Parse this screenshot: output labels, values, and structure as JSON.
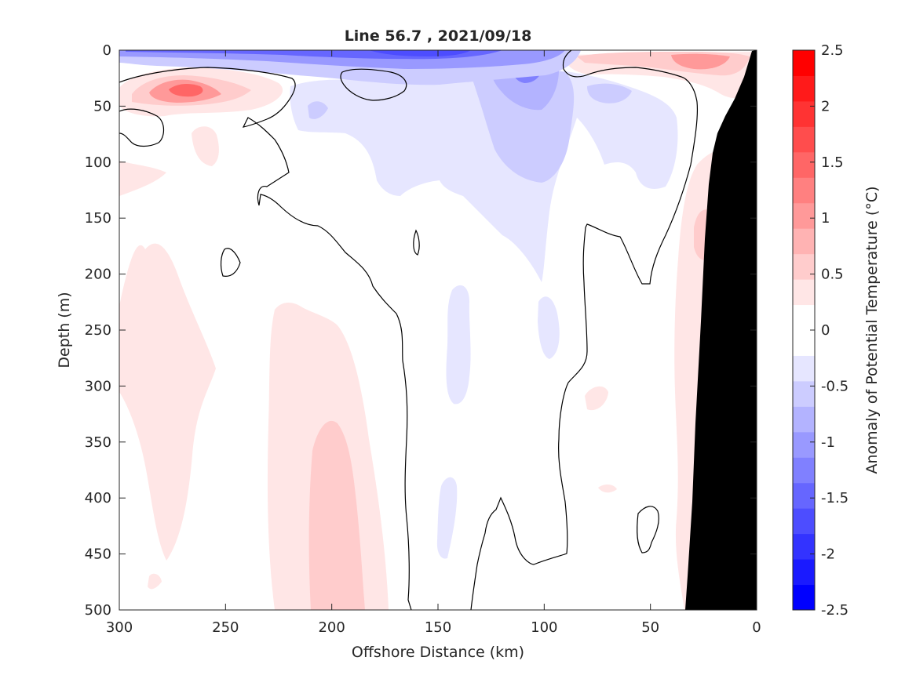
{
  "chart_data": {
    "type": "heatmap",
    "title": "Line 56.7 , 2021/09/18",
    "xlabel": "Offshore Distance (km)",
    "ylabel": "Depth (m)",
    "xlim": [
      300,
      0
    ],
    "ylim": [
      0,
      500
    ],
    "x_reversed": true,
    "y_reversed": true,
    "xticks": [
      "300",
      "250",
      "200",
      "150",
      "100",
      "50",
      "0"
    ],
    "yticks": [
      "0",
      "50",
      "100",
      "150",
      "200",
      "250",
      "300",
      "350",
      "400",
      "450",
      "500"
    ],
    "colorbar": {
      "label": "Anomaly of Potential Temperature (°C)",
      "range": [
        -2.5,
        2.5
      ],
      "step": 0.25,
      "ticks": [
        "2.5",
        "2",
        "1.5",
        "1",
        "0.5",
        "0",
        "-0.5",
        "-1",
        "-1.5",
        "-2",
        "-2.5"
      ],
      "colors": [
        "#0000ff",
        "#1a1aff",
        "#3333ff",
        "#4d4dff",
        "#6666ff",
        "#8080ff",
        "#9999ff",
        "#b3b3ff",
        "#ccccff",
        "#e6e6ff",
        "#ffffff",
        "#ffffff",
        "#ffe6e6",
        "#ffcccc",
        "#ffb3b3",
        "#ff9999",
        "#ff8080",
        "#ff6666",
        "#ff4d4d",
        "#ff3333",
        "#ff1a1a",
        "#ff0000"
      ]
    },
    "anomaly_regions": [
      {
        "name": "surface cold layer",
        "value": -1.5,
        "x": [
          300,
          118
        ],
        "depth": [
          0,
          12
        ]
      },
      {
        "name": "subsurface cold core",
        "value": -1.25,
        "x": [
          128,
          70
        ],
        "depth": [
          0,
          120
        ]
      },
      {
        "name": "cold tongue",
        "value": -0.5,
        "x": [
          140,
          45
        ],
        "depth": [
          20,
          255
        ]
      },
      {
        "name": "subsurface warm patch",
        "value": 1.25,
        "x": [
          300,
          220
        ],
        "depth": [
          25,
          60
        ]
      },
      {
        "name": "near-coast surface warm patch",
        "value": 1.0,
        "x": [
          90,
          0
        ],
        "depth": [
          0,
          45
        ]
      },
      {
        "name": "offshore warm band",
        "value": 0.5,
        "x": [
          290,
          255
        ],
        "depth": [
          175,
          470
        ]
      },
      {
        "name": "central warm band",
        "value": 0.75,
        "x": [
          228,
          172
        ],
        "depth": [
          230,
          500
        ]
      },
      {
        "name": "slope warm band",
        "value": 0.5,
        "x": [
          38,
          10
        ],
        "depth": [
          80,
          470
        ]
      }
    ],
    "contour_level": 0,
    "bathymetry_fill": "#000000"
  }
}
